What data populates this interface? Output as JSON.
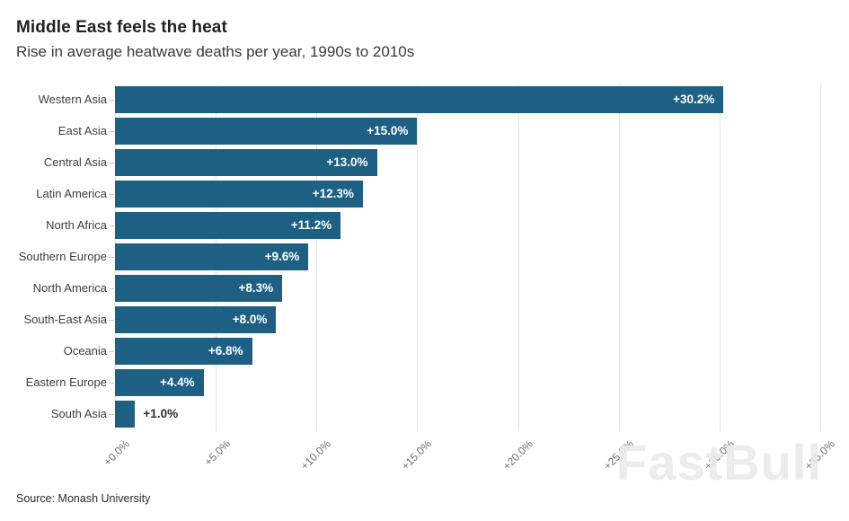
{
  "header": {
    "title": "Middle East feels the heat",
    "subtitle": "Rise in average heatwave deaths per year, 1990s to 2010s"
  },
  "source": "Source: Monash University",
  "watermark": "FastBull",
  "colors": {
    "bar": "#1d6083",
    "value_label_inside": "#ffffff",
    "value_label_outside": "#2e2e2e",
    "gridline": "#e4e4e4",
    "axis_label": "#6e6e6e"
  },
  "chart_data": {
    "type": "bar",
    "orientation": "horizontal",
    "title": "Middle East feels the heat",
    "subtitle": "Rise in average heatwave deaths per year, 1990s to 2010s",
    "categories": [
      "Western Asia",
      "East Asia",
      "Central Asia",
      "Latin America",
      "North Africa",
      "Southern Europe",
      "North America",
      "South-East Asia",
      "Oceania",
      "Eastern Europe",
      "South Asia"
    ],
    "values": [
      30.2,
      15.0,
      13.0,
      12.3,
      11.2,
      9.6,
      8.3,
      8.0,
      6.8,
      4.4,
      1.0
    ],
    "labels": [
      "+30.2%",
      "+15.0%",
      "+13.0%",
      "+12.3%",
      "+11.2%",
      "+9.6%",
      "+8.3%",
      "+8.0%",
      "+6.8%",
      "+4.4%",
      "+1.0%"
    ],
    "xlabel": "",
    "ylabel": "",
    "xlim": [
      0,
      35
    ],
    "x_ticks": [
      {
        "label": "+0.0%",
        "value": 0
      },
      {
        "label": "+5.0%",
        "value": 5
      },
      {
        "label": "+10.0%",
        "value": 10
      },
      {
        "label": "+15.0%",
        "value": 15
      },
      {
        "label": "+20.0%",
        "value": 20
      },
      {
        "label": "+25.0%",
        "value": 25
      },
      {
        "label": "+30.0%",
        "value": 30
      },
      {
        "label": "+35.0%",
        "value": 35
      }
    ],
    "grid": true,
    "legend": false
  }
}
